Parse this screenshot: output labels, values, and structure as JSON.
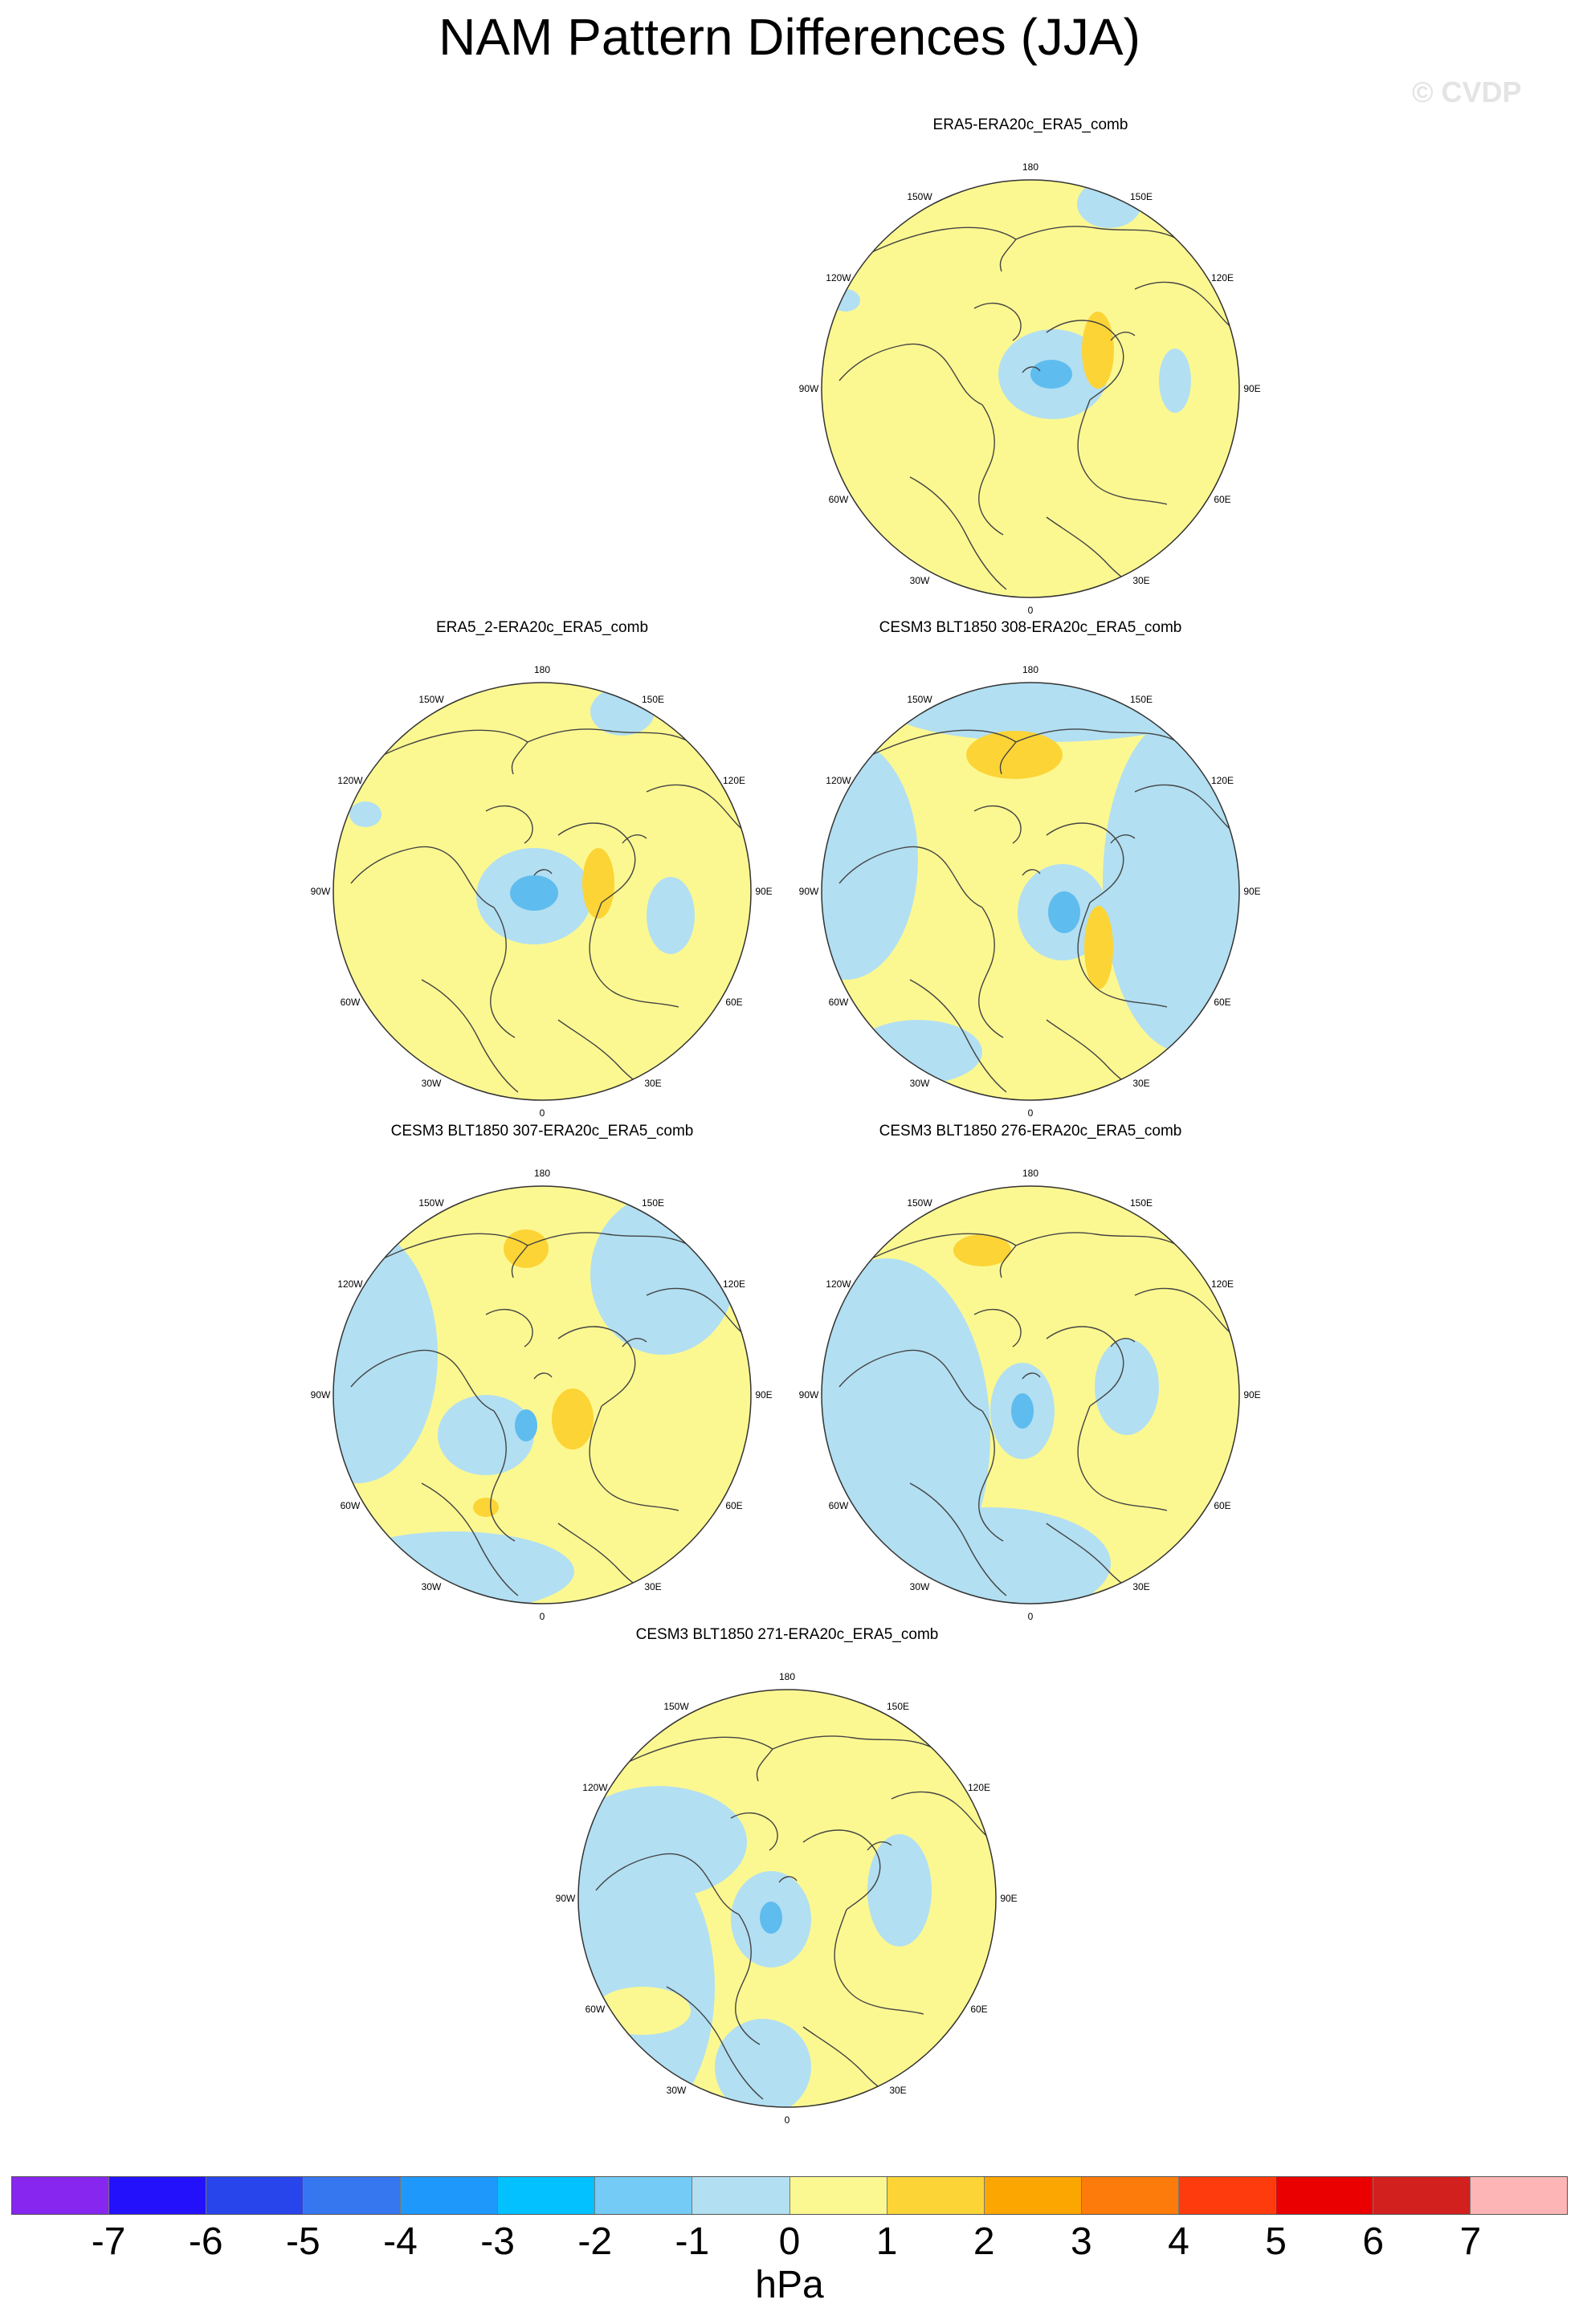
{
  "title": "NAM Pattern Differences (JJA)",
  "watermark": "© CVDP",
  "colors": {
    "pos": "#fcf891",
    "neg": "#b2dff2",
    "pos2": "#fcd436",
    "neg2": "#5fbcee"
  },
  "lon_labels": [
    "180",
    "150E",
    "120E",
    "90E",
    "60E",
    "30E",
    "0",
    "30W",
    "60W",
    "90W",
    "120W",
    "150W"
  ],
  "panels": [
    {
      "title": "ERA5-ERA20c_ERA5_comb"
    },
    {
      "title": "ERA5_2-ERA20c_ERA5_comb"
    },
    {
      "title": "CESM3 BLT1850 308-ERA20c_ERA5_comb"
    },
    {
      "title": "CESM3 BLT1850 307-ERA20c_ERA5_comb"
    },
    {
      "title": "CESM3 BLT1850 276-ERA20c_ERA5_comb"
    },
    {
      "title": "CESM3 BLT1850 271-ERA20c_ERA5_comb"
    }
  ],
  "colorbar": {
    "colors": [
      "#8626ee",
      "#2411fb",
      "#2845ec",
      "#3676ee",
      "#1e99fb",
      "#02c1fe",
      "#74cbf5",
      "#b2dff2",
      "#fcf891",
      "#fcd436",
      "#fca602",
      "#fc7b0a",
      "#fd3b0c",
      "#ea0000",
      "#d2201f",
      "#fdb5b5"
    ],
    "ticks": [
      "-7",
      "-6",
      "-5",
      "-4",
      "-3",
      "-2",
      "-1",
      "0",
      "1",
      "2",
      "3",
      "4",
      "5",
      "6",
      "7"
    ],
    "units": "hPa"
  }
}
